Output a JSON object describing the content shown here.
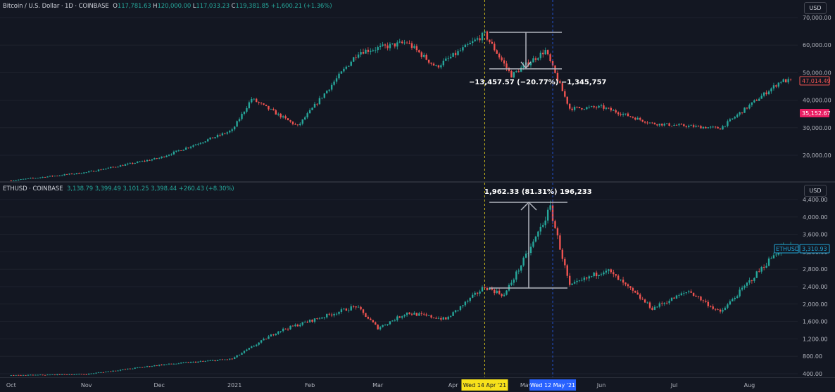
{
  "top_chart": {
    "legend": {
      "symbol": "Bitcoin / U.S. Dollar · 1D · COINBASE",
      "o_label": "O",
      "o": "117,781.63",
      "h_label": "H",
      "h": "120,000.00",
      "l_label": "L",
      "l": "117,033.23",
      "c_label": "C",
      "c": "119,381.85",
      "change": "+1,600.21 (+1.36%)"
    },
    "currency_button": "USD",
    "price_ticks": [
      "70,000.00",
      "60,000.00",
      "50,000.00",
      "40,000.00",
      "30,000.00",
      "20,000.00"
    ],
    "last_price_label": "47,014.49",
    "marker_label": "35,152.67",
    "measure_text": "−13,457.57 (−20.77%) −1,345,757"
  },
  "bottom_chart": {
    "legend": {
      "symbol": "ETHUSD · COINBASE",
      "o": "3,138.79",
      "h": "3,399.49",
      "l": "3,101.25",
      "c": "3,398.44",
      "change": "+260.43 (+8.30%)"
    },
    "currency_button": "USD",
    "price_ticks": [
      "4,400.00",
      "4,000.00",
      "3,600.00",
      "3,200.00",
      "2,800.00",
      "2,400.00",
      "2,000.00",
      "1,600.00",
      "1,200.00",
      "800.00",
      "400.00"
    ],
    "symbol_tag": "ETHUSD",
    "last_price_label": "3,310.93",
    "measure_text": "1,962.33 (81.31%) 196,233"
  },
  "time_axis": {
    "labels": [
      "Oct",
      "Nov",
      "Dec",
      "2021",
      "Feb",
      "Mar",
      "Apr",
      "May",
      "Jun",
      "Jul",
      "Aug"
    ],
    "crosshair_date_1": "Wed 14 Apr '21",
    "crosshair_date_2": "Wed 12 May '21"
  },
  "chart_data": [
    {
      "type": "candlestick",
      "title": "Bitcoin / U.S. Dollar · 1D · COINBASE",
      "ylim": [
        10000,
        72000
      ],
      "x_range": [
        "2020-10-01",
        "2021-08-20"
      ],
      "key_points": [
        {
          "date": "2020-10-01",
          "close": 10800
        },
        {
          "date": "2020-11-01",
          "close": 13800
        },
        {
          "date": "2020-12-01",
          "close": 19000
        },
        {
          "date": "2020-12-31",
          "close": 29000
        },
        {
          "date": "2021-01-08",
          "close": 40500
        },
        {
          "date": "2021-01-27",
          "close": 30500
        },
        {
          "date": "2021-02-21",
          "close": 57500
        },
        {
          "date": "2021-03-13",
          "close": 61000
        },
        {
          "date": "2021-03-25",
          "close": 52000
        },
        {
          "date": "2021-04-14",
          "close": 64000
        },
        {
          "date": "2021-04-25",
          "close": 49000
        },
        {
          "date": "2021-05-09",
          "close": 58000
        },
        {
          "date": "2021-05-19",
          "close": 37000
        },
        {
          "date": "2021-06-01",
          "close": 37500
        },
        {
          "date": "2021-06-22",
          "close": 31500
        },
        {
          "date": "2021-07-20",
          "close": 29800
        },
        {
          "date": "2021-08-14",
          "close": 47000
        }
      ]
    },
    {
      "type": "candlestick",
      "title": "ETHUSD · COINBASE",
      "ylim": [
        400,
        4500
      ],
      "x_range": [
        "2020-10-01",
        "2021-08-20"
      ],
      "key_points": [
        {
          "date": "2020-10-01",
          "close": 360
        },
        {
          "date": "2020-11-01",
          "close": 390
        },
        {
          "date": "2020-12-01",
          "close": 600
        },
        {
          "date": "2020-12-31",
          "close": 740
        },
        {
          "date": "2021-01-19",
          "close": 1380
        },
        {
          "date": "2021-02-20",
          "close": 1950
        },
        {
          "date": "2021-03-01",
          "close": 1450
        },
        {
          "date": "2021-03-13",
          "close": 1800
        },
        {
          "date": "2021-03-29",
          "close": 1650
        },
        {
          "date": "2021-04-14",
          "close": 2400
        },
        {
          "date": "2021-04-22",
          "close": 2200
        },
        {
          "date": "2021-05-03",
          "close": 3300
        },
        {
          "date": "2021-05-11",
          "close": 4200
        },
        {
          "date": "2021-05-19",
          "close": 2400
        },
        {
          "date": "2021-06-03",
          "close": 2800
        },
        {
          "date": "2021-06-22",
          "close": 1900
        },
        {
          "date": "2021-07-07",
          "close": 2300
        },
        {
          "date": "2021-07-20",
          "close": 1800
        },
        {
          "date": "2021-08-14",
          "close": 3300
        }
      ]
    }
  ],
  "colors": {
    "background": "#131722",
    "up": "#26a69a",
    "down": "#ef5350",
    "crosshair_1": "#f7e11b",
    "crosshair_2": "#2962ff",
    "measure_tool": "#b2b5be"
  }
}
